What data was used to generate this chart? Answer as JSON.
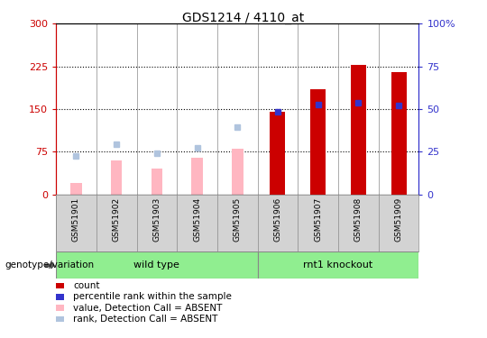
{
  "title": "GDS1214 / 4110_at",
  "samples": [
    "GSM51901",
    "GSM51902",
    "GSM51903",
    "GSM51904",
    "GSM51905",
    "GSM51906",
    "GSM51907",
    "GSM51908",
    "GSM51909"
  ],
  "count_values": [
    0,
    0,
    0,
    0,
    0,
    145,
    185,
    228,
    215
  ],
  "percentile_values": [
    0,
    0,
    0,
    0,
    0,
    145,
    158,
    161,
    157
  ],
  "absent_value": [
    20,
    60,
    45,
    65,
    80,
    0,
    0,
    0,
    0
  ],
  "absent_rank": [
    68,
    88,
    73,
    82,
    118,
    0,
    0,
    0,
    0
  ],
  "group_wt_label": "wild type",
  "group_rnt_label": "rnt1 knockout",
  "group_wt_range": [
    0,
    5
  ],
  "group_rnt_range": [
    5,
    9
  ],
  "ylim_left": [
    0,
    300
  ],
  "ylim_right": [
    0,
    100
  ],
  "yticks_left": [
    0,
    75,
    150,
    225,
    300
  ],
  "yticks_right": [
    0,
    25,
    50,
    75,
    100
  ],
  "ytick_labels_left": [
    "0",
    "75",
    "150",
    "225",
    "300"
  ],
  "ytick_labels_right": [
    "0",
    "25",
    "50",
    "75",
    "100%"
  ],
  "count_color": "#CC0000",
  "percentile_color": "#3333CC",
  "absent_value_color": "#FFB6C1",
  "absent_rank_color": "#B0C4DE",
  "bg_color": "#FFFFFF",
  "plot_bg": "#FFFFFF",
  "label_bg": "#D3D3D3",
  "group_color": "#90EE90",
  "legend_items": [
    "count",
    "percentile rank within the sample",
    "value, Detection Call = ABSENT",
    "rank, Detection Call = ABSENT"
  ],
  "legend_colors": [
    "#CC0000",
    "#3333CC",
    "#FFB6C1",
    "#B0C4DE"
  ],
  "genotype_label": "genotype/variation"
}
